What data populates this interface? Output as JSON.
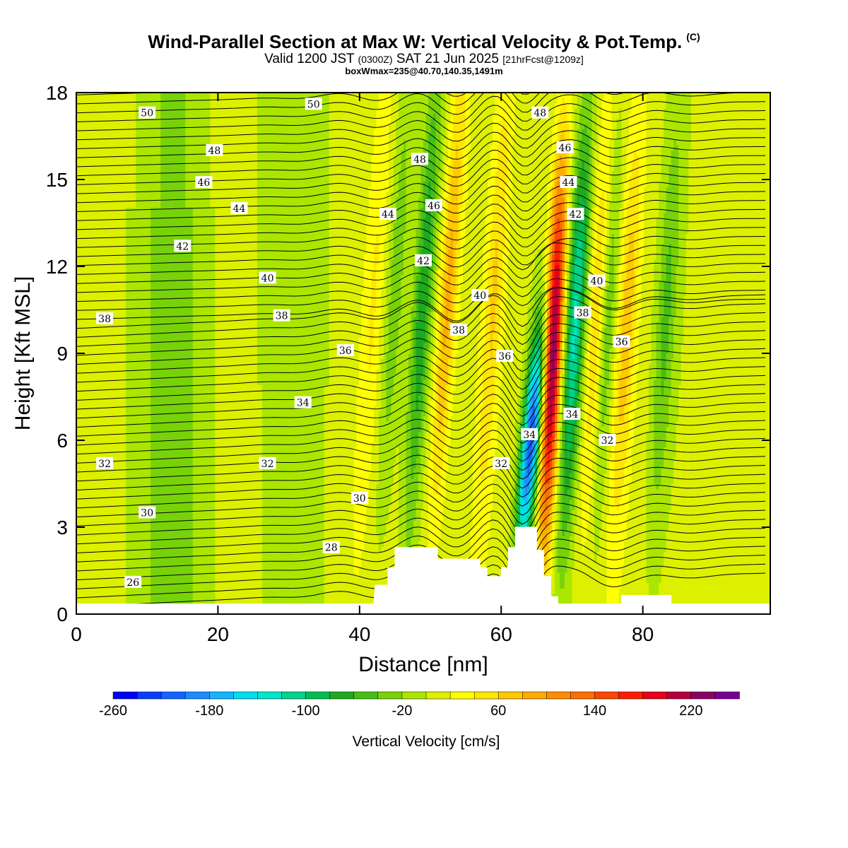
{
  "header": {
    "title": "Wind-Parallel Section at Max W: Vertical Velocity & Pot.Temp.",
    "copyright": "(C)",
    "valid_prefix": "Valid 1200 JST",
    "valid_utc": "(0300Z)",
    "valid_date": "SAT 21 Jun 2025",
    "forecast": "[21hrFcst@1209z]",
    "box_info": "boxWmax=235@40.70,140.35,1491m"
  },
  "chart_data": {
    "type": "heatmap",
    "xlabel": "Distance [nm]",
    "ylabel": "Height [Kft MSL]",
    "xlim": [
      0,
      98
    ],
    "ylim": [
      0,
      18
    ],
    "x_ticks": [
      "0",
      "20",
      "40",
      "60",
      "80"
    ],
    "y_ticks": [
      "0",
      "3",
      "6",
      "9",
      "12",
      "15",
      "18"
    ],
    "colorbar": {
      "title": "Vertical Velocity [cm/s]",
      "min": -260,
      "max": 260,
      "step": 20,
      "tick_labels": [
        "-260",
        "-180",
        "-100",
        "-20",
        "60",
        "140",
        "220"
      ],
      "colors": [
        "#0000ff",
        "#0a3cff",
        "#1464ff",
        "#1e8cff",
        "#14b4ff",
        "#00dcf0",
        "#00e6c8",
        "#00d28c",
        "#00be50",
        "#1eaa1e",
        "#46be14",
        "#78d20a",
        "#aae600",
        "#dcf000",
        "#ffff00",
        "#ffe600",
        "#ffc800",
        "#ffaa00",
        "#ff8c00",
        "#ff6e00",
        "#ff4600",
        "#ff1e00",
        "#e6001e",
        "#b4003c",
        "#8c0064",
        "#780096"
      ]
    },
    "theta_contour_labels": [
      "26",
      "28",
      "30",
      "32",
      "34",
      "36",
      "38",
      "40",
      "42",
      "44",
      "46",
      "48",
      "50"
    ],
    "terrain_heights_kft": [
      [
        0,
        0.35
      ],
      [
        42,
        0.35
      ],
      [
        42.2,
        1.0
      ],
      [
        44,
        1.0
      ],
      [
        44,
        1.6
      ],
      [
        45,
        1.6
      ],
      [
        45,
        2.3
      ],
      [
        51,
        2.3
      ],
      [
        51,
        1.9
      ],
      [
        57,
        1.9
      ],
      [
        57,
        1.6
      ],
      [
        58,
        1.6
      ],
      [
        58,
        1.3
      ],
      [
        60,
        1.3
      ],
      [
        60,
        1.6
      ],
      [
        61,
        1.6
      ],
      [
        61,
        2.3
      ],
      [
        62,
        2.3
      ],
      [
        62,
        3.0
      ],
      [
        65,
        3.0
      ],
      [
        65,
        2.2
      ],
      [
        66,
        2.2
      ],
      [
        66,
        1.3
      ],
      [
        67,
        1.3
      ],
      [
        67,
        0.6
      ],
      [
        68,
        0.6
      ],
      [
        68,
        0.35
      ],
      [
        77,
        0.35
      ],
      [
        77,
        0.65
      ],
      [
        84,
        0.65
      ],
      [
        84,
        0.35
      ],
      [
        98,
        0.35
      ]
    ],
    "velocity_features_cm_s": [
      {
        "x_center": 64.2,
        "w": -230
      },
      {
        "x_center": 67.3,
        "w": 235
      },
      {
        "x_center": 70.2,
        "w": -130
      },
      {
        "x_center": 73.5,
        "w": 80
      },
      {
        "x_center": 74.5,
        "w": -80
      },
      {
        "x_center": 77.5,
        "w": 60
      },
      {
        "x_center": 52,
        "w": 80
      },
      {
        "x_center": 48.5,
        "w": -80
      },
      {
        "x_center": 58.5,
        "w": 50
      },
      {
        "x_center": 44.5,
        "w": -40
      },
      {
        "x_center": 41.5,
        "w": 30
      },
      {
        "x_center": 83,
        "w": -50
      },
      {
        "x_center": 14,
        "w": -25
      },
      {
        "x_center": 30,
        "w": -15
      }
    ]
  }
}
